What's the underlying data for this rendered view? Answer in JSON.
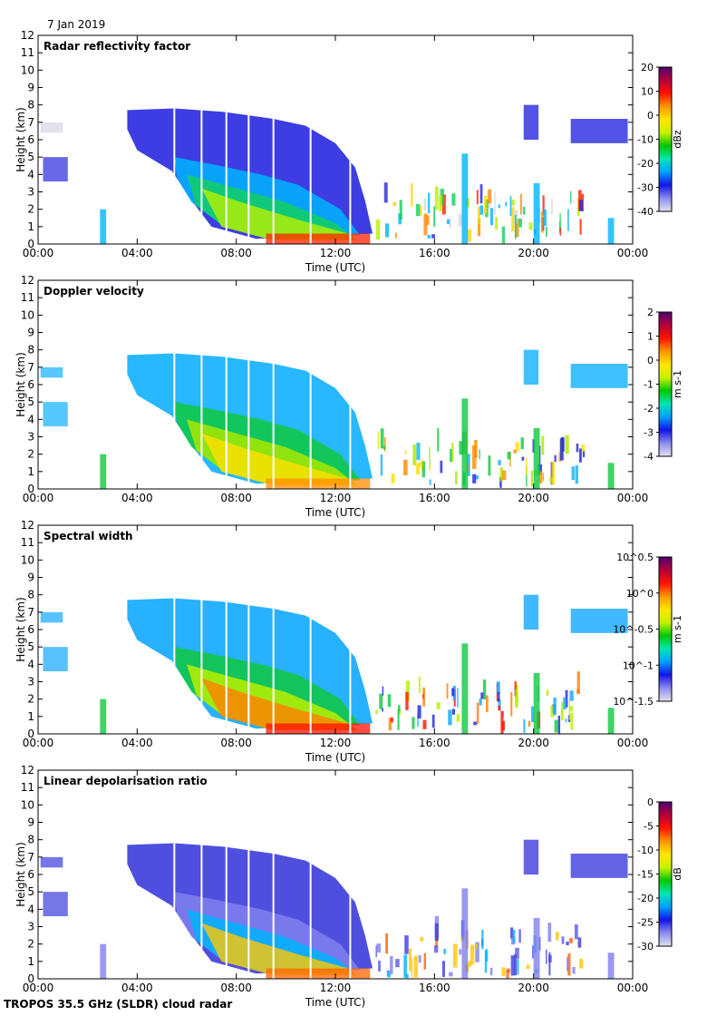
{
  "date": "7 Jan 2019",
  "footer": "TROPOS 35.5 GHz (SLDR) cloud radar",
  "chart_data": [
    {
      "type": "heatmap",
      "title": "Radar reflectivity factor",
      "xlabel": "Time (UTC)",
      "ylabel": "Height (km)",
      "x_ticks": [
        "00:00",
        "04:00",
        "08:00",
        "12:00",
        "16:00",
        "20:00",
        "00:00"
      ],
      "xlim": [
        0,
        24
      ],
      "ylim": [
        0,
        12
      ],
      "y_ticks": [
        0,
        1,
        2,
        3,
        4,
        5,
        6,
        7,
        8,
        9,
        10,
        11,
        12
      ],
      "colorbar": {
        "label": "dBz",
        "ticks": [
          "20",
          "10",
          "0",
          "-10",
          "-20",
          "-30",
          "-40"
        ]
      }
    },
    {
      "type": "heatmap",
      "title": "Doppler velocity",
      "xlabel": "Time (UTC)",
      "ylabel": "Height (km)",
      "x_ticks": [
        "00:00",
        "04:00",
        "08:00",
        "12:00",
        "16:00",
        "20:00",
        "00:00"
      ],
      "xlim": [
        0,
        24
      ],
      "ylim": [
        0,
        12
      ],
      "y_ticks": [
        0,
        1,
        2,
        3,
        4,
        5,
        6,
        7,
        8,
        9,
        10,
        11,
        12
      ],
      "colorbar": {
        "label": "m s-1",
        "ticks": [
          "2",
          "1",
          "0",
          "-1",
          "-2",
          "-3",
          "-4"
        ]
      }
    },
    {
      "type": "heatmap",
      "title": "Spectral width",
      "xlabel": "Time (UTC)",
      "ylabel": "Height (km)",
      "x_ticks": [
        "00:00",
        "04:00",
        "08:00",
        "12:00",
        "16:00",
        "20:00",
        "00:00"
      ],
      "xlim": [
        0,
        24
      ],
      "ylim": [
        0,
        12
      ],
      "y_ticks": [
        0,
        1,
        2,
        3,
        4,
        5,
        6,
        7,
        8,
        9,
        10,
        11,
        12
      ],
      "colorbar": {
        "label": "m s-1",
        "ticks": [
          "10^0.5",
          "10^0",
          "10^-0.5",
          "10^-1",
          "10^-1.5"
        ]
      }
    },
    {
      "type": "heatmap",
      "title": "Linear depolarisation ratio",
      "xlabel": "Time (UTC)",
      "ylabel": "Height (km)",
      "x_ticks": [
        "00:00",
        "04:00",
        "08:00",
        "12:00",
        "16:00",
        "20:00",
        "00:00"
      ],
      "xlim": [
        0,
        24
      ],
      "ylim": [
        0,
        12
      ],
      "y_ticks": [
        0,
        1,
        2,
        3,
        4,
        5,
        6,
        7,
        8,
        9,
        10,
        11,
        12
      ],
      "colorbar": {
        "label": "dB",
        "ticks": [
          "0",
          "-5",
          "-10",
          "-15",
          "-20",
          "-25",
          "-30"
        ]
      }
    }
  ],
  "colors": {
    "colormap": [
      "#e2e2f0",
      "#8c8cf0",
      "#1414e6",
      "#00a0ff",
      "#00e6b4",
      "#00c800",
      "#c8f000",
      "#ffe600",
      "#ff9600",
      "#ff1400",
      "#b4003c",
      "#50006e"
    ],
    "reflectivity_field": [
      "#d6d6e4",
      "#2828e0",
      "#00b4ff",
      "#10d060",
      "#b8f000",
      "#ffd700",
      "#ff8c00",
      "#ff2000"
    ],
    "velocity_field": [
      "#2020e0",
      "#10b0ff",
      "#10c840",
      "#a8e800",
      "#ffe000",
      "#ff8c00"
    ],
    "width_field": [
      "#2020e0",
      "#10a8ff",
      "#10c840",
      "#b8f000",
      "#ff8000",
      "#ff1000"
    ],
    "ldr_field": [
      "#5a5ae6",
      "#3c3cdc",
      "#8080ee",
      "#00b4ff",
      "#ffc800",
      "#ff6400"
    ]
  }
}
